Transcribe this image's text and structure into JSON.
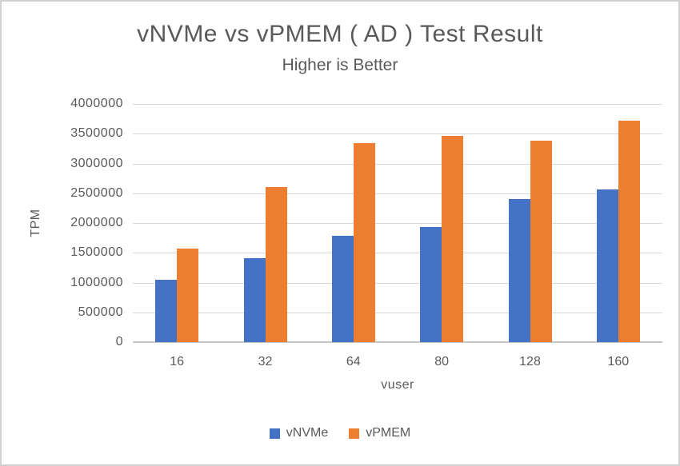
{
  "title": "vNVMe vs vPMEM ( AD ) Test Result",
  "subtitle": "Higher is Better",
  "chart_data": {
    "type": "bar",
    "title": "vNVMe vs vPMEM ( AD ) Test Result",
    "subtitle": "Higher is Better",
    "xlabel": "vuser",
    "ylabel": "TPM",
    "categories": [
      "16",
      "32",
      "64",
      "80",
      "128",
      "160"
    ],
    "series": [
      {
        "name": "vNVMe",
        "color": "#4472C4",
        "values": [
          1050000,
          1410000,
          1780000,
          1940000,
          2400000,
          2570000
        ]
      },
      {
        "name": "vPMEM",
        "color": "#ED7D31",
        "values": [
          1570000,
          2600000,
          3340000,
          3470000,
          3380000,
          3720000
        ]
      }
    ],
    "ylim": [
      0,
      4000000
    ],
    "ytick_step": 500000,
    "yticks": [
      "0",
      "500000",
      "1000000",
      "1500000",
      "2000000",
      "2500000",
      "3000000",
      "3500000",
      "4000000"
    ],
    "grid": true,
    "legend_position": "bottom",
    "colors": {
      "text": "#595959",
      "gridline": "#D9D9D9",
      "axis_line": "#C6C6C6",
      "background": "#FFFFFF",
      "frame_border": "#D1D1D1"
    }
  }
}
